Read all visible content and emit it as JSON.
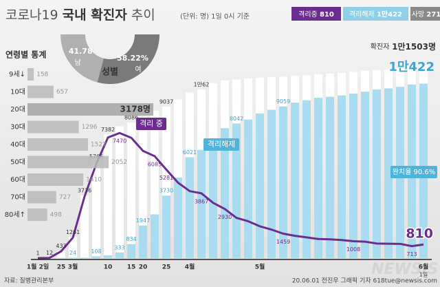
{
  "header": {
    "title_parts": [
      "코로나19",
      "국내 확진자",
      "추이"
    ],
    "unit_note": "(단위: 명) 1일 0시 기준",
    "badges": [
      {
        "label": "격리중",
        "value": "810",
        "color": "#6b2d8f"
      },
      {
        "label": "격리해제",
        "value": "1만422",
        "color": "#8fd0e8"
      },
      {
        "label": "사망",
        "value": "271",
        "color": "#8a8a8a"
      }
    ]
  },
  "annotations": {
    "cure_rate": "완치율 90.6%"
  },
  "watermark": "NEWSIS",
  "footer": {
    "source": "자료: 질병관리본부",
    "credit": "20.06.01 전진우 그래픽 기자 618tue@newsis.com"
  },
  "chart_data": [
    {
      "type": "bar",
      "categories": [
        "1월 2일",
        null,
        "25",
        "3월",
        null,
        null,
        "10",
        null,
        "15",
        "20",
        null,
        "25",
        null,
        "4월",
        null,
        null,
        null,
        null,
        null,
        "5월",
        null,
        null,
        null,
        null,
        null,
        null,
        null,
        null,
        null,
        null,
        null,
        null,
        null,
        "6월"
      ],
      "xlabel_note": "1일",
      "ylim": [
        0,
        12000
      ],
      "series": [
        {
          "name": "확진자",
          "type": "bar",
          "color": "#ffffff",
          "values": [
            1,
            12,
            433,
            1261,
            3736,
            5766,
            7382,
            7869,
            8086,
            8413,
            8799,
            9037,
            9478,
            9887,
            10062,
            10450,
            10613,
            10674,
            10728,
            10780,
            10801,
            10822,
            10874,
            10909,
            10962,
            11018,
            11065,
            11122,
            11190,
            11225,
            11265,
            11344,
            11441,
            11503
          ],
          "value_labels": [
            "1",
            "12",
            "433",
            "1261",
            "3736",
            "5766",
            "7382",
            null,
            "8086",
            null,
            null,
            "9037",
            null,
            null,
            "1만62",
            null,
            null,
            null,
            null,
            null,
            null,
            null,
            null,
            null,
            null,
            null,
            null,
            null,
            null,
            null,
            null,
            null,
            null,
            "1만1503명"
          ]
        },
        {
          "name": "격리해제",
          "type": "bar",
          "color": "#a9dcee",
          "values": [
            0,
            0,
            16,
            24,
            30,
            108,
            166,
            333,
            834,
            1947,
            2612,
            3730,
            4811,
            6021,
            6463,
            7117,
            7757,
            8042,
            8277,
            8635,
            8854,
            9059,
            9283,
            9419,
            9570,
            9632,
            9714,
            9821,
            9938,
            10066,
            10135,
            10226,
            10363,
            10422
          ],
          "value_labels": [
            null,
            null,
            null,
            "24",
            null,
            "108",
            null,
            "333",
            "834",
            "1947",
            null,
            "3730",
            null,
            "6021",
            null,
            null,
            null,
            "8042",
            null,
            null,
            null,
            "9059",
            null,
            null,
            null,
            null,
            null,
            null,
            null,
            null,
            null,
            null,
            null,
            "1만422"
          ]
        },
        {
          "name": "격리 중",
          "type": "line",
          "color": "#6b2d8f",
          "values": [
            1,
            11,
            410,
            1220,
            3680,
            5620,
            7200,
            7470,
            7180,
            6400,
            6085,
            5281,
            4500,
            4000,
            3867,
            3300,
            2930,
            2400,
            2200,
            1900,
            1700,
            1459,
            1330,
            1240,
            1140,
            1120,
            1080,
            1008,
            980,
            870,
            860,
            850,
            713,
            810
          ],
          "value_labels": [
            null,
            null,
            null,
            null,
            null,
            null,
            null,
            "7470",
            null,
            null,
            "6085",
            "5281",
            null,
            null,
            "3867",
            null,
            "2930",
            null,
            null,
            null,
            null,
            "1459",
            null,
            null,
            null,
            null,
            null,
            "1008",
            null,
            null,
            null,
            null,
            "713",
            "810"
          ]
        }
      ]
    },
    {
      "type": "hbar",
      "title": "연령별 통계",
      "categories": [
        "9세↓",
        "10대",
        "20대",
        "30대",
        "40대",
        "50대",
        "60대",
        "70대",
        "80세↑"
      ],
      "values": [
        158,
        657,
        3178,
        1296,
        1527,
        2052,
        1410,
        727,
        498
      ],
      "value_labels": [
        "158",
        "657",
        "3178명",
        "1296",
        "1527",
        "2052",
        "1410",
        "727",
        "498"
      ],
      "color": "#b9b9b9",
      "xlim": [
        0,
        3300
      ]
    },
    {
      "type": "pie",
      "title": "성별",
      "categories": [
        "남",
        "여"
      ],
      "values": [
        41.78,
        58.22
      ],
      "value_labels": [
        "41.78",
        "58.22%"
      ],
      "colors": [
        "#b0b0b0",
        "#7a7a7a"
      ]
    }
  ]
}
